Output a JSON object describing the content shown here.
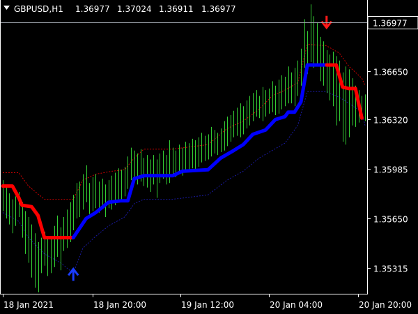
{
  "header": {
    "symbol": "GBPUSD,H1",
    "open": "1.36977",
    "high": "1.37024",
    "low": "1.36911",
    "close": "1.36977"
  },
  "colors": {
    "background": "#000000",
    "frame": "#ffffff",
    "candle": "#33cc33",
    "trend_up": "#0000ff",
    "trend_down": "#ff0000",
    "band_upper": "#cc0000",
    "band_lower": "#1a1aa0",
    "price_line": "#9aa0a8",
    "arrow_up": "#1a3cff",
    "arrow_down": "#ff1a1a"
  },
  "chart_data": {
    "type": "line",
    "title": "GBPUSD,H1",
    "ylim": [
      1.3514,
      1.3713
    ],
    "price_ticks": [
      "1.36650",
      "1.36320",
      "1.35985",
      "1.35650",
      "1.35315"
    ],
    "current_price": "1.36977",
    "time_ticks": [
      "18 Jan 2021",
      "18 Jan 20:00",
      "19 Jan 12:00",
      "20 Jan 04:00",
      "20 Jan 20:00"
    ],
    "candles": [
      {
        "i": 0,
        "h": 1.3591,
        "l": 1.357
      },
      {
        "i": 1,
        "h": 1.3587,
        "l": 1.3565
      },
      {
        "i": 2,
        "h": 1.3582,
        "l": 1.3561
      },
      {
        "i": 3,
        "h": 1.3578,
        "l": 1.3555
      },
      {
        "i": 4,
        "h": 1.358,
        "l": 1.356
      },
      {
        "i": 5,
        "h": 1.3583,
        "l": 1.3566
      },
      {
        "i": 6,
        "h": 1.3576,
        "l": 1.3552
      },
      {
        "i": 7,
        "h": 1.357,
        "l": 1.3541
      },
      {
        "i": 8,
        "h": 1.3566,
        "l": 1.3535
      },
      {
        "i": 9,
        "h": 1.3561,
        "l": 1.3525
      },
      {
        "i": 10,
        "h": 1.3555,
        "l": 1.3518
      },
      {
        "i": 11,
        "h": 1.3549,
        "l": 1.3515
      },
      {
        "i": 12,
        "h": 1.3552,
        "l": 1.3528
      },
      {
        "i": 13,
        "h": 1.3556,
        "l": 1.3533
      },
      {
        "i": 14,
        "h": 1.3551,
        "l": 1.3526
      },
      {
        "i": 15,
        "h": 1.3552,
        "l": 1.3528
      },
      {
        "i": 16,
        "h": 1.356,
        "l": 1.3532
      },
      {
        "i": 17,
        "h": 1.3567,
        "l": 1.3539
      },
      {
        "i": 18,
        "h": 1.3559,
        "l": 1.353
      },
      {
        "i": 19,
        "h": 1.3566,
        "l": 1.3543
      },
      {
        "i": 20,
        "h": 1.3571,
        "l": 1.3545
      },
      {
        "i": 21,
        "h": 1.3576,
        "l": 1.3549
      },
      {
        "i": 22,
        "h": 1.3581,
        "l": 1.3557
      },
      {
        "i": 23,
        "h": 1.3589,
        "l": 1.3565
      },
      {
        "i": 24,
        "h": 1.359,
        "l": 1.3566
      },
      {
        "i": 25,
        "h": 1.3595,
        "l": 1.3571
      },
      {
        "i": 26,
        "h": 1.3601,
        "l": 1.3576
      },
      {
        "i": 27,
        "h": 1.3589,
        "l": 1.3568
      },
      {
        "i": 28,
        "h": 1.3593,
        "l": 1.357
      },
      {
        "i": 29,
        "h": 1.3595,
        "l": 1.3572
      },
      {
        "i": 30,
        "h": 1.359,
        "l": 1.3569
      },
      {
        "i": 31,
        "h": 1.3592,
        "l": 1.3574
      },
      {
        "i": 32,
        "h": 1.3588,
        "l": 1.3566
      },
      {
        "i": 33,
        "h": 1.3591,
        "l": 1.3572
      },
      {
        "i": 34,
        "h": 1.3594,
        "l": 1.3571
      },
      {
        "i": 35,
        "h": 1.3596,
        "l": 1.3574
      },
      {
        "i": 36,
        "h": 1.3599,
        "l": 1.3578
      },
      {
        "i": 37,
        "h": 1.3598,
        "l": 1.3577
      },
      {
        "i": 38,
        "h": 1.36,
        "l": 1.358
      },
      {
        "i": 39,
        "h": 1.3607,
        "l": 1.3585
      },
      {
        "i": 40,
        "h": 1.3613,
        "l": 1.3591
      },
      {
        "i": 41,
        "h": 1.3611,
        "l": 1.3592
      },
      {
        "i": 42,
        "h": 1.3609,
        "l": 1.3588
      },
      {
        "i": 43,
        "h": 1.3612,
        "l": 1.359
      },
      {
        "i": 44,
        "h": 1.3606,
        "l": 1.3587
      },
      {
        "i": 45,
        "h": 1.3608,
        "l": 1.3586
      },
      {
        "i": 46,
        "h": 1.3605,
        "l": 1.3583
      },
      {
        "i": 47,
        "h": 1.3608,
        "l": 1.3588
      },
      {
        "i": 48,
        "h": 1.3605,
        "l": 1.3579
      },
      {
        "i": 49,
        "h": 1.3609,
        "l": 1.3589
      },
      {
        "i": 50,
        "h": 1.3611,
        "l": 1.3592
      },
      {
        "i": 51,
        "h": 1.3608,
        "l": 1.3588
      },
      {
        "i": 52,
        "h": 1.3618,
        "l": 1.3589
      },
      {
        "i": 53,
        "h": 1.3613,
        "l": 1.3595
      },
      {
        "i": 54,
        "h": 1.3611,
        "l": 1.3593
      },
      {
        "i": 55,
        "h": 1.3615,
        "l": 1.3596
      },
      {
        "i": 56,
        "h": 1.3613,
        "l": 1.3594
      },
      {
        "i": 57,
        "h": 1.3617,
        "l": 1.3596
      },
      {
        "i": 58,
        "h": 1.3616,
        "l": 1.3597
      },
      {
        "i": 59,
        "h": 1.3619,
        "l": 1.3599
      },
      {
        "i": 60,
        "h": 1.3618,
        "l": 1.3598
      },
      {
        "i": 61,
        "h": 1.362,
        "l": 1.36
      },
      {
        "i": 62,
        "h": 1.3623,
        "l": 1.3603
      },
      {
        "i": 63,
        "h": 1.3621,
        "l": 1.3604
      },
      {
        "i": 64,
        "h": 1.3622,
        "l": 1.3605
      },
      {
        "i": 65,
        "h": 1.3627,
        "l": 1.3607
      },
      {
        "i": 66,
        "h": 1.3625,
        "l": 1.3609
      },
      {
        "i": 67,
        "h": 1.3623,
        "l": 1.3608
      },
      {
        "i": 68,
        "h": 1.3626,
        "l": 1.361
      },
      {
        "i": 69,
        "h": 1.3631,
        "l": 1.3611
      },
      {
        "i": 70,
        "h": 1.3634,
        "l": 1.3614
      },
      {
        "i": 71,
        "h": 1.3635,
        "l": 1.3617
      },
      {
        "i": 72,
        "h": 1.3638,
        "l": 1.362
      },
      {
        "i": 73,
        "h": 1.364,
        "l": 1.3621
      },
      {
        "i": 74,
        "h": 1.3643,
        "l": 1.362
      },
      {
        "i": 75,
        "h": 1.3641,
        "l": 1.3622
      },
      {
        "i": 76,
        "h": 1.3645,
        "l": 1.3626
      },
      {
        "i": 77,
        "h": 1.3648,
        "l": 1.3628
      },
      {
        "i": 78,
        "h": 1.365,
        "l": 1.3631
      },
      {
        "i": 79,
        "h": 1.3652,
        "l": 1.3634
      },
      {
        "i": 80,
        "h": 1.3648,
        "l": 1.3633
      },
      {
        "i": 81,
        "h": 1.3654,
        "l": 1.3631
      },
      {
        "i": 82,
        "h": 1.3652,
        "l": 1.3634
      },
      {
        "i": 83,
        "h": 1.3653,
        "l": 1.3636
      },
      {
        "i": 84,
        "h": 1.3658,
        "l": 1.3637
      },
      {
        "i": 85,
        "h": 1.3655,
        "l": 1.3635
      },
      {
        "i": 86,
        "h": 1.3659,
        "l": 1.3636
      },
      {
        "i": 87,
        "h": 1.3662,
        "l": 1.3639
      },
      {
        "i": 88,
        "h": 1.3661,
        "l": 1.3641
      },
      {
        "i": 89,
        "h": 1.3668,
        "l": 1.3643
      },
      {
        "i": 90,
        "h": 1.3664,
        "l": 1.3643
      },
      {
        "i": 91,
        "h": 1.3667,
        "l": 1.3641
      },
      {
        "i": 92,
        "h": 1.3672,
        "l": 1.3648
      },
      {
        "i": 93,
        "h": 1.368,
        "l": 1.3655
      },
      {
        "i": 94,
        "h": 1.37,
        "l": 1.3667
      },
      {
        "i": 95,
        "h": 1.3692,
        "l": 1.3663
      },
      {
        "i": 96,
        "h": 1.371,
        "l": 1.3671
      },
      {
        "i": 97,
        "h": 1.3702,
        "l": 1.3667
      },
      {
        "i": 98,
        "h": 1.3698,
        "l": 1.367
      },
      {
        "i": 99,
        "h": 1.3688,
        "l": 1.3658
      },
      {
        "i": 100,
        "h": 1.3685,
        "l": 1.3655
      },
      {
        "i": 101,
        "h": 1.3679,
        "l": 1.365
      },
      {
        "i": 102,
        "h": 1.3676,
        "l": 1.3645
      },
      {
        "i": 103,
        "h": 1.3678,
        "l": 1.3641
      },
      {
        "i": 104,
        "h": 1.3675,
        "l": 1.3628
      },
      {
        "i": 105,
        "h": 1.3672,
        "l": 1.3631
      },
      {
        "i": 106,
        "h": 1.3664,
        "l": 1.3617
      },
      {
        "i": 107,
        "h": 1.3668,
        "l": 1.3615
      },
      {
        "i": 108,
        "h": 1.3666,
        "l": 1.362
      },
      {
        "i": 109,
        "h": 1.366,
        "l": 1.3628
      },
      {
        "i": 110,
        "h": 1.3655,
        "l": 1.3627
      },
      {
        "i": 111,
        "h": 1.3652,
        "l": 1.363
      },
      {
        "i": 112,
        "h": 1.3648,
        "l": 1.3632
      },
      {
        "i": 113,
        "h": 1.3649,
        "l": 1.3631
      }
    ],
    "trend": [
      {
        "i": 0,
        "v": 1.3587,
        "dir": "down"
      },
      {
        "i": 3,
        "v": 1.3587,
        "dir": "down"
      },
      {
        "i": 5,
        "v": 1.3579,
        "dir": "down"
      },
      {
        "i": 6,
        "v": 1.3574,
        "dir": "down"
      },
      {
        "i": 9,
        "v": 1.3573,
        "dir": "down"
      },
      {
        "i": 11,
        "v": 1.3567,
        "dir": "down"
      },
      {
        "i": 13,
        "v": 1.3552,
        "dir": "down"
      },
      {
        "i": 22,
        "v": 1.3552,
        "dir": "down"
      },
      {
        "i": 22,
        "v": 1.3552,
        "dir": "up"
      },
      {
        "i": 26,
        "v": 1.3565,
        "dir": "up"
      },
      {
        "i": 29,
        "v": 1.3569,
        "dir": "up"
      },
      {
        "i": 33,
        "v": 1.3576,
        "dir": "up"
      },
      {
        "i": 37,
        "v": 1.3577,
        "dir": "up"
      },
      {
        "i": 39,
        "v": 1.3577,
        "dir": "up"
      },
      {
        "i": 41,
        "v": 1.3592,
        "dir": "up"
      },
      {
        "i": 44,
        "v": 1.3594,
        "dir": "up"
      },
      {
        "i": 53,
        "v": 1.3594,
        "dir": "up"
      },
      {
        "i": 56,
        "v": 1.3597,
        "dir": "up"
      },
      {
        "i": 64,
        "v": 1.3598,
        "dir": "up"
      },
      {
        "i": 68,
        "v": 1.3606,
        "dir": "up"
      },
      {
        "i": 72,
        "v": 1.3611,
        "dir": "up"
      },
      {
        "i": 75,
        "v": 1.3615,
        "dir": "up"
      },
      {
        "i": 78,
        "v": 1.3622,
        "dir": "up"
      },
      {
        "i": 82,
        "v": 1.3625,
        "dir": "up"
      },
      {
        "i": 85,
        "v": 1.3632,
        "dir": "up"
      },
      {
        "i": 88,
        "v": 1.3634,
        "dir": "up"
      },
      {
        "i": 89,
        "v": 1.3637,
        "dir": "up"
      },
      {
        "i": 91,
        "v": 1.3637,
        "dir": "up"
      },
      {
        "i": 93,
        "v": 1.3644,
        "dir": "up"
      },
      {
        "i": 95,
        "v": 1.3669,
        "dir": "up"
      },
      {
        "i": 101,
        "v": 1.3669,
        "dir": "up"
      },
      {
        "i": 101,
        "v": 1.3669,
        "dir": "down"
      },
      {
        "i": 104,
        "v": 1.3669,
        "dir": "down"
      },
      {
        "i": 106,
        "v": 1.3654,
        "dir": "down"
      },
      {
        "i": 108,
        "v": 1.3653,
        "dir": "down"
      },
      {
        "i": 110,
        "v": 1.3653,
        "dir": "down"
      },
      {
        "i": 111,
        "v": 1.3643,
        "dir": "down"
      },
      {
        "i": 112,
        "v": 1.3633,
        "dir": "down"
      }
    ],
    "band_upper": [
      [
        0,
        1.3596
      ],
      [
        5,
        1.3596
      ],
      [
        8,
        1.3587
      ],
      [
        13,
        1.3578
      ],
      [
        22,
        1.3578
      ],
      [
        25,
        1.3591
      ],
      [
        29,
        1.3595
      ],
      [
        34,
        1.3597
      ],
      [
        38,
        1.3598
      ],
      [
        41,
        1.3606
      ],
      [
        44,
        1.3612
      ],
      [
        53,
        1.3612
      ],
      [
        64,
        1.3615
      ],
      [
        70,
        1.3626
      ],
      [
        75,
        1.3631
      ],
      [
        80,
        1.3639
      ],
      [
        84,
        1.3648
      ],
      [
        88,
        1.3652
      ],
      [
        92,
        1.3657
      ],
      [
        95,
        1.3683
      ],
      [
        101,
        1.3682
      ],
      [
        105,
        1.3677
      ],
      [
        108,
        1.3668
      ],
      [
        112,
        1.366
      ],
      [
        113,
        1.3655
      ]
    ],
    "band_lower": [
      [
        0,
        1.3569
      ],
      [
        5,
        1.3563
      ],
      [
        8,
        1.3552
      ],
      [
        13,
        1.3541
      ],
      [
        18,
        1.3535
      ],
      [
        22,
        1.3528
      ],
      [
        25,
        1.3545
      ],
      [
        29,
        1.3553
      ],
      [
        33,
        1.356
      ],
      [
        38,
        1.3566
      ],
      [
        41,
        1.3575
      ],
      [
        44,
        1.3578
      ],
      [
        53,
        1.3578
      ],
      [
        64,
        1.3581
      ],
      [
        70,
        1.3591
      ],
      [
        75,
        1.3597
      ],
      [
        80,
        1.3606
      ],
      [
        84,
        1.3611
      ],
      [
        88,
        1.3616
      ],
      [
        92,
        1.3628
      ],
      [
        95,
        1.3651
      ],
      [
        101,
        1.3651
      ],
      [
        105,
        1.3647
      ],
      [
        108,
        1.3643
      ],
      [
        112,
        1.3637
      ],
      [
        113,
        1.3628
      ]
    ],
    "signals": [
      {
        "i": 22,
        "price": 1.3527,
        "direction": "up"
      },
      {
        "i": 101,
        "price": 1.3698,
        "direction": "down"
      }
    ]
  }
}
